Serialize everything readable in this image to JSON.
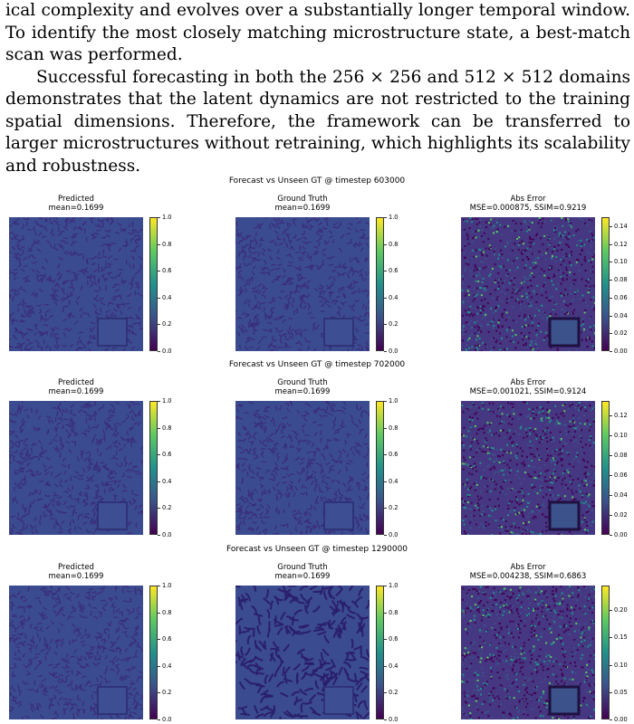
{
  "text": {
    "line1": "ical complexity and evolves over a substantially longer temporal window. To identify the most closely matching microstructure state, a best-match scan was performed.",
    "para2": "Successful forecasting in both the 256 × 256 and 512 × 512 domains demonstrates that the latent dynamics are not restricted to the training spatial dimensions. Therefore, the framework can be transferred to larger microstructures without retraining, which highlights its scalability and robustness."
  },
  "figure": {
    "rows": [
      {
        "title": "Forecast vs Unseen GT @ timestep 603000",
        "panels": [
          {
            "title": "Predicted",
            "subtitle": "mean=0.1699",
            "kind": "field",
            "cbar_max": 1.0,
            "cbar_ticks": [
              "0.0",
              "0.2",
              "0.4",
              "0.6",
              "0.8",
              "1.0"
            ]
          },
          {
            "title": "Ground Truth",
            "subtitle": "mean=0.1699",
            "kind": "field",
            "cbar_max": 1.0,
            "cbar_ticks": [
              "0.0",
              "0.2",
              "0.4",
              "0.6",
              "0.8",
              "1.0"
            ]
          },
          {
            "title": "Abs Error",
            "subtitle": "MSE=0.000875, SSIM=0.9219",
            "kind": "error",
            "cbar_max": 0.15,
            "cbar_ticks": [
              "0.00",
              "0.02",
              "0.04",
              "0.06",
              "0.08",
              "0.10",
              "0.12",
              "0.14"
            ]
          }
        ]
      },
      {
        "title": "Forecast vs Unseen GT @ timestep 702000",
        "panels": [
          {
            "title": "Predicted",
            "subtitle": "mean=0.1699",
            "kind": "field",
            "cbar_max": 1.0,
            "cbar_ticks": [
              "0.0",
              "0.2",
              "0.4",
              "0.6",
              "0.8",
              "1.0"
            ]
          },
          {
            "title": "Ground Truth",
            "subtitle": "mean=0.1699",
            "kind": "field",
            "cbar_max": 1.0,
            "cbar_ticks": [
              "0.0",
              "0.2",
              "0.4",
              "0.6",
              "0.8",
              "1.0"
            ]
          },
          {
            "title": "Abs Error",
            "subtitle": "MSE=0.001021, SSIM=0.9124",
            "kind": "error",
            "cbar_max": 0.135,
            "cbar_ticks": [
              "0.00",
              "0.02",
              "0.04",
              "0.06",
              "0.08",
              "0.10",
              "0.12"
            ]
          }
        ]
      },
      {
        "title": "Forecast vs Unseen GT @ timestep 1290000",
        "panels": [
          {
            "title": "Predicted",
            "subtitle": "mean=0.1699",
            "kind": "field",
            "cbar_max": 1.0,
            "cbar_ticks": [
              "0.0",
              "0.2",
              "0.4",
              "0.6",
              "0.8",
              "1.0"
            ]
          },
          {
            "title": "Ground Truth",
            "subtitle": "mean=0.1699",
            "kind": "coarse",
            "cbar_max": 1.0,
            "cbar_ticks": [
              "0.0",
              "0.2",
              "0.4",
              "0.6",
              "0.8",
              "1.0"
            ]
          },
          {
            "title": "Abs Error",
            "subtitle": "MSE=0.004238, SSIM=0.6863",
            "kind": "error",
            "cbar_max": 0.245,
            "cbar_ticks": [
              "0.00",
              "0.05",
              "0.10",
              "0.15",
              "0.20"
            ]
          }
        ]
      }
    ],
    "colors": {
      "viridis_low": "#440154",
      "viridis_mid": "#21918c",
      "viridis_high": "#fde725",
      "field_background": "#3b4b8f"
    }
  }
}
